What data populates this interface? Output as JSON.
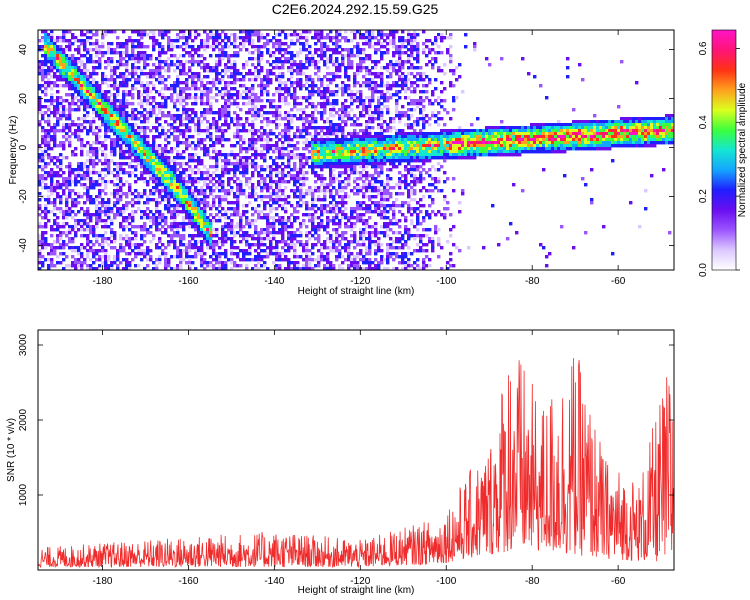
{
  "title": "C2E6.2024.292.15.59.G25",
  "colors": {
    "snr_line": "#ef2b2b",
    "colormap": [
      "#ffffff",
      "#dcc8ff",
      "#9b55ff",
      "#6a0ef0",
      "#1f1fff",
      "#14a5ff",
      "#14e6d2",
      "#3cff3c",
      "#dcff1e",
      "#ffa01e",
      "#ff3214",
      "#ff1478",
      "#ff14c8"
    ]
  },
  "chart_data": [
    {
      "type": "heatmap",
      "xlabel": "Height of straight line (km)",
      "ylabel": "Frequency (Hz)",
      "xlim": [
        -195,
        -47
      ],
      "ylim": [
        -50,
        48
      ],
      "xticks": [
        -180,
        -160,
        -140,
        -120,
        -100,
        -80,
        -60
      ],
      "yticks": [
        -40,
        -20,
        0,
        20,
        40
      ],
      "colorbar": {
        "label": "Normalized spectral amplitude",
        "range": [
          0,
          0.65
        ],
        "ticks": [
          0.0,
          0.2,
          0.4,
          0.6
        ]
      },
      "features": [
        {
          "from": [
            -194,
            43
          ],
          "to": [
            -162,
            -18
          ]
        },
        {
          "from": [
            -162,
            -18
          ],
          "to": [
            -155,
            -35
          ]
        },
        {
          "from": [
            -132,
            -2
          ],
          "to": [
            -47,
            8
          ]
        }
      ]
    },
    {
      "type": "line",
      "xlabel": "Height of straight line (km)",
      "ylabel": "SNR (10 * v/v)",
      "xlim": [
        -195,
        -47
      ],
      "ylim": [
        0,
        3200
      ],
      "xticks": [
        -180,
        -160,
        -140,
        -120,
        -100,
        -80,
        -60
      ],
      "yticks": [
        1000,
        2000,
        3000
      ],
      "envelope": [
        {
          "x": -195,
          "low": 40,
          "high": 300
        },
        {
          "x": -160,
          "low": 40,
          "high": 450
        },
        {
          "x": -140,
          "low": 40,
          "high": 520
        },
        {
          "x": -120,
          "low": 40,
          "high": 400
        },
        {
          "x": -102,
          "low": 80,
          "high": 700
        },
        {
          "x": -90,
          "low": 200,
          "high": 1700
        },
        {
          "x": -85,
          "low": 250,
          "high": 3200
        },
        {
          "x": -78,
          "low": 250,
          "high": 2200
        },
        {
          "x": -70,
          "low": 200,
          "high": 3000
        },
        {
          "x": -63,
          "low": 150,
          "high": 1500
        },
        {
          "x": -55,
          "low": 120,
          "high": 1200
        },
        {
          "x": -48,
          "low": 100,
          "high": 2800
        }
      ]
    }
  ]
}
